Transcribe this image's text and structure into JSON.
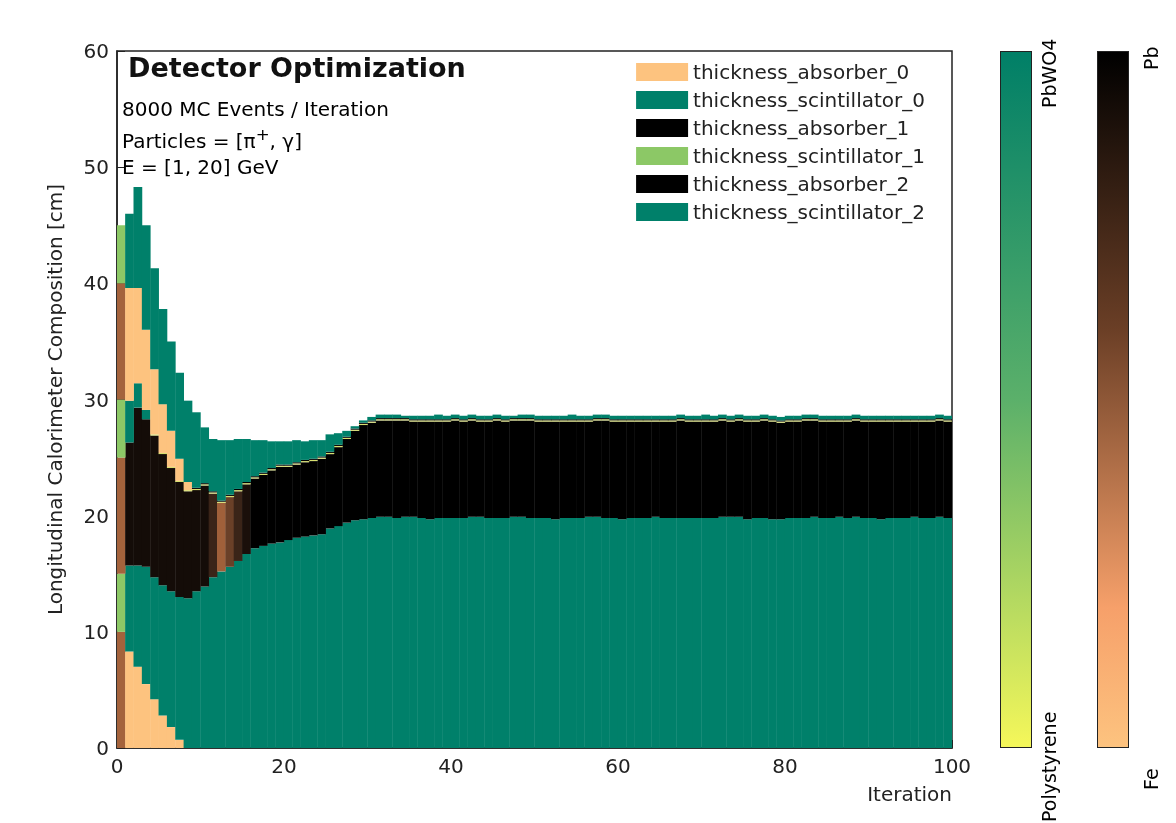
{
  "chart_data": {
    "type": "bar",
    "stacked": true,
    "title": "Detector Optimization",
    "xlabel": "Iteration",
    "ylabel": "Longitudinal Calorimeter Composition [cm]",
    "annotations": [
      "8000 MC Events / Iteration",
      "Particles = [π$^{+}$, γ]",
      "E = [1, 20] GeV",
      "PbWO4",
      "Polystyrene",
      "Pb",
      "Fe"
    ],
    "xlim": [
      0,
      100
    ],
    "xticks": [
      0,
      20,
      40,
      60,
      80,
      100
    ],
    "ylim": [
      0,
      60
    ],
    "yticks": [
      0,
      10,
      20,
      30,
      40,
      50,
      60
    ],
    "grid": false,
    "legend": "top right",
    "x": [
      0.5,
      1.5,
      2.5,
      3.5,
      4.5,
      5.5,
      6.5,
      7.5,
      8.5,
      9.5,
      10.5,
      11.5,
      12.5,
      13.5,
      14.5,
      15.5,
      16.5,
      17.5,
      18.5,
      19.5,
      20.5,
      21.5,
      22.5,
      23.5,
      24.5,
      25.5,
      26.5,
      27.5,
      28.5,
      29.5,
      30.5,
      31.5,
      32.5,
      33.5,
      34.5,
      35.5,
      36.5,
      37.5,
      38.5,
      39.5,
      40.5,
      41.5,
      42.5,
      43.5,
      44.5,
      45.5,
      46.5,
      47.5,
      48.5,
      49.5,
      50.5,
      51.5,
      52.5,
      53.5,
      54.5,
      55.5,
      56.5,
      57.5,
      58.5,
      59.5,
      60.5,
      61.5,
      62.5,
      63.5,
      64.5,
      65.5,
      66.5,
      67.5,
      68.5,
      69.5,
      70.5,
      71.5,
      72.5,
      73.5,
      74.5,
      75.5,
      76.5,
      77.5,
      78.5,
      79.5,
      80.5,
      81.5,
      82.5,
      83.5,
      84.5,
      85.5,
      86.5,
      87.5,
      88.5,
      89.5,
      90.5,
      91.5,
      92.5,
      93.5,
      94.5,
      95.5,
      96.5,
      97.5,
      98.5,
      99.5
    ],
    "series": [
      {
        "name": "thickness_absorber_0",
        "color": "#fdc37f",
        "values": [
          10,
          8.3,
          7.0,
          5.5,
          4.2,
          2.8,
          1.8,
          0.7,
          0,
          0,
          0,
          0,
          0,
          0,
          0,
          0,
          0,
          0,
          0,
          0,
          0,
          0,
          0,
          0,
          0,
          0,
          0,
          0,
          0,
          0,
          0,
          0,
          0,
          0,
          0,
          0,
          0,
          0,
          0,
          0,
          0,
          0,
          0,
          0,
          0,
          0,
          0,
          0,
          0,
          0,
          0,
          0,
          0,
          0,
          0,
          0,
          0,
          0,
          0,
          0,
          0,
          0,
          0,
          0,
          0,
          0,
          0,
          0,
          0,
          0,
          0,
          0,
          0,
          0,
          0,
          0,
          0,
          0,
          0,
          0,
          0,
          0,
          0,
          0,
          0,
          0,
          0,
          0,
          0,
          0,
          0,
          0,
          0,
          0,
          0,
          0,
          0,
          0,
          0,
          0
        ],
        "colors": [
          "#a4633c",
          "#fdc37f",
          "#fdc37f",
          "#fdc37f",
          "#fdc37f",
          "#fdc37f",
          "#fdc37f",
          "#fdc37f",
          "#fdc37f",
          "#fdc37f",
          "#fdc37f",
          "#fdc37f",
          "#fdc37f",
          "#fdc37f",
          "#fdc37f",
          "#fdc37f",
          "#fdc37f",
          "#fdc37f",
          "#fdc37f",
          "#fdc37f",
          "#fdc37f",
          "#fdc37f",
          "#fdc37f",
          "#fdc37f",
          "#fdc37f",
          "#fdc37f",
          "#fdc37f",
          "#fdc37f",
          "#fdc37f",
          "#fdc37f",
          "#fdc37f",
          "#fdc37f",
          "#fdc37f",
          "#fdc37f",
          "#fdc37f",
          "#fdc37f",
          "#fdc37f",
          "#fdc37f",
          "#fdc37f",
          "#fdc37f",
          "#fdc37f",
          "#fdc37f",
          "#fdc37f",
          "#fdc37f",
          "#fdc37f",
          "#fdc37f",
          "#fdc37f",
          "#fdc37f",
          "#fdc37f",
          "#fdc37f",
          "#fdc37f",
          "#fdc37f",
          "#fdc37f",
          "#fdc37f",
          "#fdc37f",
          "#fdc37f",
          "#fdc37f",
          "#fdc37f",
          "#fdc37f",
          "#fdc37f",
          "#fdc37f",
          "#fdc37f",
          "#fdc37f",
          "#fdc37f",
          "#fdc37f",
          "#fdc37f",
          "#fdc37f",
          "#fdc37f",
          "#fdc37f",
          "#fdc37f",
          "#fdc37f",
          "#fdc37f",
          "#fdc37f",
          "#fdc37f",
          "#fdc37f",
          "#fdc37f",
          "#fdc37f",
          "#fdc37f",
          "#fdc37f",
          "#fdc37f",
          "#fdc37f",
          "#fdc37f",
          "#fdc37f",
          "#fdc37f",
          "#fdc37f",
          "#fdc37f",
          "#fdc37f",
          "#fdc37f",
          "#fdc37f",
          "#fdc37f",
          "#fdc37f",
          "#fdc37f",
          "#fdc37f",
          "#fdc37f",
          "#fdc37f",
          "#fdc37f",
          "#fdc37f",
          "#fdc37f",
          "#fdc37f",
          "#fdc37f"
        ]
      },
      {
        "name": "thickness_scintillator_0",
        "color": "#00806a",
        "values": [
          5,
          7.4,
          8.7,
          10.1,
          10.5,
          11.2,
          11.7,
          12.3,
          12.9,
          13.5,
          13.9,
          14.7,
          15.2,
          15.6,
          16.1,
          16.7,
          17.2,
          17.4,
          17.6,
          17.7,
          17.9,
          18.1,
          18.2,
          18.3,
          18.4,
          18.9,
          19.1,
          19.4,
          19.6,
          19.7,
          19.8,
          19.9,
          19.9,
          19.8,
          19.9,
          19.9,
          19.8,
          19.7,
          19.8,
          19.8,
          19.8,
          19.8,
          19.9,
          19.9,
          19.8,
          19.8,
          19.8,
          19.9,
          19.9,
          19.8,
          19.8,
          19.8,
          19.7,
          19.8,
          19.8,
          19.8,
          19.9,
          19.9,
          19.8,
          19.8,
          19.7,
          19.8,
          19.8,
          19.8,
          19.9,
          19.8,
          19.8,
          19.8,
          19.8,
          19.8,
          19.8,
          19.8,
          19.9,
          19.9,
          19.9,
          19.7,
          19.8,
          19.8,
          19.7,
          19.7,
          19.8,
          19.8,
          19.8,
          19.9,
          19.8,
          19.8,
          19.9,
          19.8,
          19.9,
          19.8,
          19.8,
          19.7,
          19.8,
          19.8,
          19.8,
          19.9,
          19.8,
          19.8,
          19.9,
          19.8
        ],
        "colors": [
          "#8cc866",
          "#00806a",
          "#00806a",
          "#00806a",
          "#00806a",
          "#00806a",
          "#00806a",
          "#00806a",
          "#00806a",
          "#00806a",
          "#00806a",
          "#00806a",
          "#00806a",
          "#00806a",
          "#00806a",
          "#00806a",
          "#00806a",
          "#00806a",
          "#00806a",
          "#00806a",
          "#00806a",
          "#00806a",
          "#00806a",
          "#00806a",
          "#00806a",
          "#00806a",
          "#00806a",
          "#00806a",
          "#00806a",
          "#00806a",
          "#00806a",
          "#00806a",
          "#00806a",
          "#00806a",
          "#00806a",
          "#00806a",
          "#00806a",
          "#00806a",
          "#00806a",
          "#00806a",
          "#00806a",
          "#00806a",
          "#00806a",
          "#00806a",
          "#00806a",
          "#00806a",
          "#00806a",
          "#00806a",
          "#00806a",
          "#00806a",
          "#00806a",
          "#00806a",
          "#00806a",
          "#00806a",
          "#00806a",
          "#00806a",
          "#00806a",
          "#00806a",
          "#00806a",
          "#00806a",
          "#00806a",
          "#00806a",
          "#00806a",
          "#00806a",
          "#00806a",
          "#00806a",
          "#00806a",
          "#00806a",
          "#00806a",
          "#00806a",
          "#00806a",
          "#00806a",
          "#00806a",
          "#00806a",
          "#00806a",
          "#00806a",
          "#00806a",
          "#00806a",
          "#00806a",
          "#00806a",
          "#00806a",
          "#00806a",
          "#00806a",
          "#00806a",
          "#00806a",
          "#00806a",
          "#00806a",
          "#00806a",
          "#00806a",
          "#00806a",
          "#00806a",
          "#00806a",
          "#00806a",
          "#00806a",
          "#00806a",
          "#00806a",
          "#00806a",
          "#00806a",
          "#00806a",
          "#00806a"
        ]
      },
      {
        "name": "thickness_absorber_1",
        "color": "#000000",
        "values": [
          10,
          10.6,
          13.6,
          12.7,
          12.2,
          11.3,
          10.6,
          9.9,
          9.2,
          8.7,
          8.7,
          7.2,
          5.9,
          6.0,
          6.0,
          6.0,
          6.0,
          6.1,
          6.3,
          6.5,
          6.3,
          6.3,
          6.4,
          6.4,
          6.5,
          6.4,
          6.8,
          7.2,
          7.7,
          8.1,
          8.2,
          8.3,
          8.3,
          8.4,
          8.3,
          8.2,
          8.3,
          8.4,
          8.3,
          8.3,
          8.4,
          8.3,
          8.3,
          8.2,
          8.3,
          8.4,
          8.3,
          8.3,
          8.3,
          8.4,
          8.3,
          8.3,
          8.4,
          8.3,
          8.3,
          8.3,
          8.2,
          8.3,
          8.4,
          8.3,
          8.4,
          8.3,
          8.3,
          8.3,
          8.2,
          8.3,
          8.3,
          8.4,
          8.3,
          8.3,
          8.3,
          8.3,
          8.3,
          8.2,
          8.3,
          8.4,
          8.3,
          8.4,
          8.4,
          8.3,
          8.3,
          8.3,
          8.4,
          8.3,
          8.3,
          8.3,
          8.2,
          8.3,
          8.3,
          8.3,
          8.3,
          8.4,
          8.3,
          8.3,
          8.3,
          8.2,
          8.3,
          8.3,
          8.3,
          8.3
        ],
        "colors": [
          "#a4633c",
          "#140c08",
          "#140c08",
          "#140c08",
          "#140c08",
          "#140c08",
          "#140c08",
          "#140c08",
          "#140c08",
          "#140c08",
          "#140c08",
          "#3a2418",
          "#a0603a",
          "#6a4028",
          "#3a2418",
          "#1a0f0a",
          "#000000",
          "#000000",
          "#000000",
          "#000000",
          "#000000",
          "#000000",
          "#000000",
          "#000000",
          "#000000",
          "#000000",
          "#000000",
          "#000000",
          "#000000",
          "#000000",
          "#000000",
          "#000000",
          "#000000",
          "#000000",
          "#000000",
          "#000000",
          "#000000",
          "#000000",
          "#000000",
          "#000000",
          "#000000",
          "#000000",
          "#000000",
          "#000000",
          "#000000",
          "#000000",
          "#000000",
          "#000000",
          "#000000",
          "#000000",
          "#000000",
          "#000000",
          "#000000",
          "#000000",
          "#000000",
          "#000000",
          "#000000",
          "#000000",
          "#000000",
          "#000000",
          "#000000",
          "#000000",
          "#000000",
          "#000000",
          "#000000",
          "#000000",
          "#000000",
          "#000000",
          "#000000",
          "#000000",
          "#000000",
          "#000000",
          "#000000",
          "#000000",
          "#000000",
          "#000000",
          "#000000",
          "#000000",
          "#000000",
          "#000000",
          "#000000",
          "#000000",
          "#000000",
          "#000000",
          "#000000",
          "#000000",
          "#000000",
          "#000000",
          "#000000",
          "#000000",
          "#000000",
          "#000000",
          "#000000",
          "#000000",
          "#000000",
          "#000000",
          "#000000",
          "#000000",
          "#000000",
          "#000000"
        ]
      },
      {
        "name": "thickness_scintillator_1",
        "color": "#8cc866",
        "values": [
          5,
          3.6,
          2.1,
          0.8,
          0.1,
          0.1,
          0.1,
          0.1,
          0.1,
          0.1,
          0.1,
          0.1,
          0.1,
          0.1,
          0.1,
          0.1,
          0.1,
          0.1,
          0.1,
          0.1,
          0.1,
          0.1,
          0.1,
          0.1,
          0.1,
          0.1,
          0.1,
          0.1,
          0.1,
          0.1,
          0.1,
          0.1,
          0.1,
          0.1,
          0.1,
          0.1,
          0.1,
          0.1,
          0.1,
          0.1,
          0.1,
          0.1,
          0.1,
          0.1,
          0.1,
          0.1,
          0.1,
          0.1,
          0.1,
          0.1,
          0.1,
          0.1,
          0.1,
          0.1,
          0.1,
          0.1,
          0.1,
          0.1,
          0.1,
          0.1,
          0.1,
          0.1,
          0.1,
          0.1,
          0.1,
          0.1,
          0.1,
          0.1,
          0.1,
          0.1,
          0.1,
          0.1,
          0.1,
          0.1,
          0.1,
          0.1,
          0.1,
          0.1,
          0.1,
          0.1,
          0.1,
          0.1,
          0.1,
          0.1,
          0.1,
          0.1,
          0.1,
          0.1,
          0.1,
          0.1,
          0.1,
          0.1,
          0.1,
          0.1,
          0.1,
          0.1,
          0.1,
          0.1,
          0.1,
          0.1
        ],
        "colors": [
          "#8cc866",
          "#00806a",
          "#00806a",
          "#00806a",
          "#d8e070",
          "#d8e070",
          "#d8e070",
          "#d8e070",
          "#d8e070",
          "#d8e070",
          "#d8e070",
          "#d8e070",
          "#d8e070",
          "#d8e070",
          "#d8e070",
          "#d8e070",
          "#d8e070",
          "#d8e070",
          "#d8e070",
          "#d8e070",
          "#d8e070",
          "#d8e070",
          "#d8e070",
          "#d8e070",
          "#d8e070",
          "#d8e070",
          "#d8e070",
          "#d8e070",
          "#d8e070",
          "#d8e070",
          "#d8e070",
          "#d8e070",
          "#d8e070",
          "#d8e070",
          "#d8e070",
          "#d8e070",
          "#d8e070",
          "#d8e070",
          "#d8e070",
          "#d8e070",
          "#d8e070",
          "#d8e070",
          "#d8e070",
          "#d8e070",
          "#d8e070",
          "#d8e070",
          "#d8e070",
          "#d8e070",
          "#d8e070",
          "#d8e070",
          "#d8e070",
          "#d8e070",
          "#d8e070",
          "#d8e070",
          "#d8e070",
          "#d8e070",
          "#d8e070",
          "#d8e070",
          "#d8e070",
          "#d8e070",
          "#d8e070",
          "#d8e070",
          "#d8e070",
          "#d8e070",
          "#d8e070",
          "#d8e070",
          "#d8e070",
          "#d8e070",
          "#d8e070",
          "#d8e070",
          "#d8e070",
          "#d8e070",
          "#d8e070",
          "#d8e070",
          "#d8e070",
          "#d8e070",
          "#d8e070",
          "#d8e070",
          "#d8e070",
          "#d8e070",
          "#d8e070",
          "#d8e070",
          "#d8e070",
          "#d8e070",
          "#d8e070",
          "#d8e070",
          "#d8e070",
          "#d8e070",
          "#d8e070",
          "#d8e070",
          "#d8e070",
          "#d8e070",
          "#d8e070",
          "#d8e070",
          "#d8e070",
          "#d8e070",
          "#d8e070",
          "#d8e070",
          "#d8e070",
          "#d8e070"
        ]
      },
      {
        "name": "thickness_absorber_2",
        "color": "#000000",
        "values": [
          10,
          9.7,
          8.2,
          6.9,
          5.6,
          4.2,
          3.1,
          1.9,
          0.7,
          0.1,
          0.1,
          0.1,
          0.1,
          0.1,
          0.1,
          0.1,
          0.1,
          0.1,
          0.1,
          0.1,
          0.1,
          0.1,
          0.1,
          0.1,
          0.1,
          0.1,
          0.1,
          0.1,
          0.1,
          0.1,
          0.1,
          0.1,
          0.1,
          0.1,
          0.1,
          0.1,
          0.1,
          0.1,
          0.1,
          0.1,
          0.1,
          0.1,
          0.1,
          0.1,
          0.1,
          0.1,
          0.1,
          0.1,
          0.1,
          0.1,
          0.1,
          0.1,
          0.1,
          0.1,
          0.1,
          0.1,
          0.1,
          0.1,
          0.1,
          0.1,
          0.1,
          0.1,
          0.1,
          0.1,
          0.1,
          0.1,
          0.1,
          0.1,
          0.1,
          0.1,
          0.1,
          0.1,
          0.1,
          0.1,
          0.1,
          0.1,
          0.1,
          0.1,
          0.1,
          0.1,
          0.1,
          0.1,
          0.1,
          0.1,
          0.1,
          0.1,
          0.1,
          0.1,
          0.1,
          0.1,
          0.1,
          0.1,
          0.1,
          0.1,
          0.1,
          0.1,
          0.1,
          0.1,
          0.1,
          0.1
        ],
        "colors": [
          "#a4633c",
          "#fdc37f",
          "#fdc37f",
          "#fdc37f",
          "#fdc37f",
          "#fdc37f",
          "#fdc37f",
          "#fdc37f",
          "#fdc37f",
          "#000000",
          "#000000",
          "#000000",
          "#000000",
          "#000000",
          "#000000",
          "#000000",
          "#000000",
          "#000000",
          "#000000",
          "#000000",
          "#000000",
          "#000000",
          "#000000",
          "#000000",
          "#000000",
          "#000000",
          "#000000",
          "#000000",
          "#000000",
          "#000000",
          "#000000",
          "#000000",
          "#000000",
          "#000000",
          "#000000",
          "#000000",
          "#000000",
          "#000000",
          "#000000",
          "#000000",
          "#000000",
          "#000000",
          "#000000",
          "#000000",
          "#000000",
          "#000000",
          "#000000",
          "#000000",
          "#000000",
          "#000000",
          "#000000",
          "#000000",
          "#000000",
          "#000000",
          "#000000",
          "#000000",
          "#000000",
          "#000000",
          "#000000",
          "#000000",
          "#000000",
          "#000000",
          "#000000",
          "#000000",
          "#000000",
          "#000000",
          "#000000",
          "#000000",
          "#000000",
          "#000000",
          "#000000",
          "#000000",
          "#000000",
          "#000000",
          "#000000",
          "#000000",
          "#000000",
          "#000000",
          "#000000",
          "#000000",
          "#000000",
          "#000000",
          "#000000",
          "#000000",
          "#000000",
          "#000000",
          "#000000",
          "#000000",
          "#000000",
          "#000000",
          "#000000",
          "#000000",
          "#000000",
          "#000000",
          "#000000",
          "#000000",
          "#000000",
          "#000000",
          "#000000",
          "#000000"
        ]
      },
      {
        "name": "thickness_scintillator_2",
        "color": "#00806a",
        "values": [
          5,
          6.4,
          8.7,
          9.0,
          8.7,
          8.2,
          7.7,
          7.4,
          7.0,
          6.5,
          4.8,
          4.5,
          5.2,
          4.7,
          4.3,
          3.7,
          3.1,
          2.8,
          2.3,
          2.0,
          2.0,
          1.9,
          1.6,
          1.6,
          1.4,
          1.5,
          1.0,
          0.5,
          0.2,
          0.2,
          0.3,
          0.3,
          0.3,
          0.3,
          0.2,
          0.3,
          0.3,
          0.3,
          0.4,
          0.3,
          0.3,
          0.3,
          0.3,
          0.3,
          0.3,
          0.3,
          0.3,
          0.2,
          0.3,
          0.3,
          0.3,
          0.3,
          0.3,
          0.3,
          0.4,
          0.3,
          0.3,
          0.3,
          0.3,
          0.3,
          0.3,
          0.3,
          0.3,
          0.3,
          0.3,
          0.3,
          0.3,
          0.3,
          0.3,
          0.3,
          0.4,
          0.3,
          0.3,
          0.3,
          0.3,
          0.3,
          0.3,
          0.3,
          0.3,
          0.3,
          0.3,
          0.3,
          0.3,
          0.3,
          0.3,
          0.3,
          0.3,
          0.3,
          0.3,
          0.3,
          0.3,
          0.3,
          0.3,
          0.3,
          0.3,
          0.3,
          0.3,
          0.3,
          0.3,
          0.3
        ],
        "colors": [
          "#8cc866",
          "#00806a",
          "#00806a",
          "#00806a",
          "#00806a",
          "#00806a",
          "#00806a",
          "#00806a",
          "#00806a",
          "#00806a",
          "#00806a",
          "#00806a",
          "#00806a",
          "#00806a",
          "#00806a",
          "#00806a",
          "#00806a",
          "#00806a",
          "#00806a",
          "#00806a",
          "#00806a",
          "#00806a",
          "#00806a",
          "#00806a",
          "#00806a",
          "#00806a",
          "#00806a",
          "#00806a",
          "#00806a",
          "#00806a",
          "#00806a",
          "#00806a",
          "#00806a",
          "#00806a",
          "#00806a",
          "#00806a",
          "#00806a",
          "#00806a",
          "#00806a",
          "#00806a",
          "#00806a",
          "#00806a",
          "#00806a",
          "#00806a",
          "#00806a",
          "#00806a",
          "#00806a",
          "#00806a",
          "#00806a",
          "#00806a",
          "#00806a",
          "#00806a",
          "#00806a",
          "#00806a",
          "#00806a",
          "#00806a",
          "#00806a",
          "#00806a",
          "#00806a",
          "#00806a",
          "#00806a",
          "#00806a",
          "#00806a",
          "#00806a",
          "#00806a",
          "#00806a",
          "#00806a",
          "#00806a",
          "#00806a",
          "#00806a",
          "#00806a",
          "#00806a",
          "#00806a",
          "#00806a",
          "#00806a",
          "#00806a",
          "#00806a",
          "#00806a",
          "#00806a",
          "#00806a",
          "#00806a",
          "#00806a",
          "#00806a",
          "#00806a",
          "#00806a",
          "#00806a",
          "#00806a",
          "#00806a",
          "#00806a",
          "#00806a",
          "#00806a",
          "#00806a",
          "#00806a",
          "#00806a",
          "#00806a",
          "#00806a",
          "#00806a",
          "#00806a",
          "#00806a",
          "#00806a"
        ]
      }
    ]
  }
}
